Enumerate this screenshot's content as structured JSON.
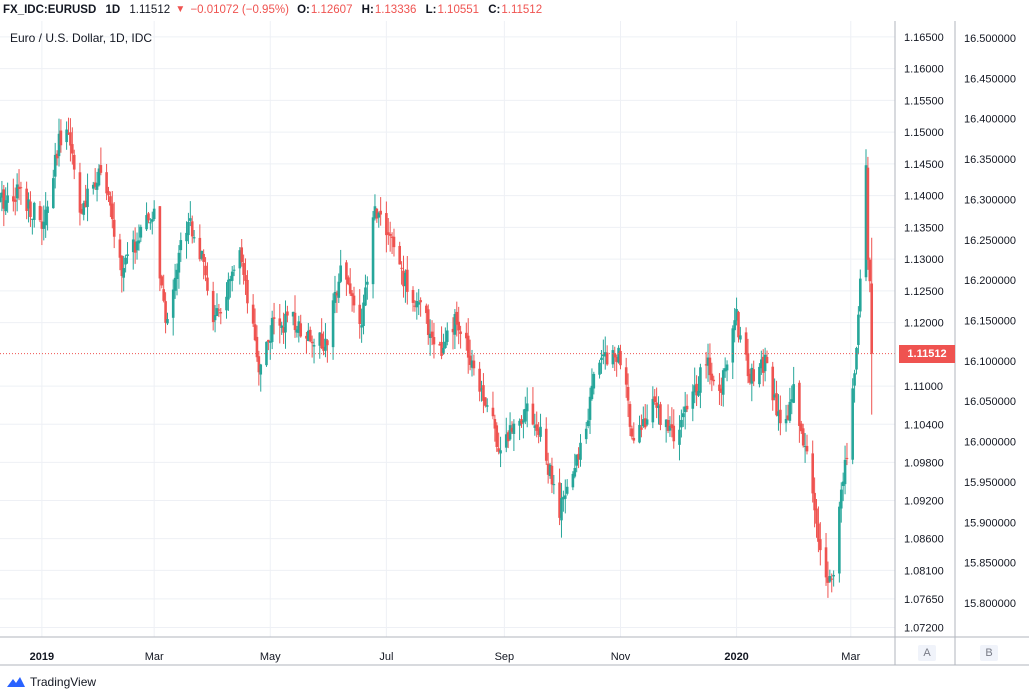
{
  "header": {
    "symbol": "FX_IDC:EURUSD",
    "interval": "1D",
    "last": "1.11512",
    "change": "−0.01072 (−0.95%)",
    "o_label": "O:",
    "o_value": "1.12607",
    "h_label": "H:",
    "h_value": "1.13336",
    "l_label": "L:",
    "l_value": "1.10551",
    "c_label": "C:",
    "c_value": "1.11512"
  },
  "pane": {
    "title": "Euro / U.S. Dollar, 1D, IDC"
  },
  "price_tag": "1.11512",
  "scale_buttons": {
    "a": "A",
    "b": "B"
  },
  "footer": {
    "brand": "TradingView"
  },
  "colors": {
    "up": "#26a69a",
    "down": "#ef5350",
    "grid": "#eef0f5",
    "axis": "#787b86"
  },
  "chart_data": {
    "type": "candlestick",
    "title": "Euro / U.S. Dollar, 1D, IDC",
    "last_price": 1.11512,
    "axis_a": {
      "ticks": [
        "1.16500",
        "1.16000",
        "1.15500",
        "1.15000",
        "1.14500",
        "1.14000",
        "1.13500",
        "1.13000",
        "1.12500",
        "1.12000",
        "1.11000",
        "1.10400",
        "1.09800",
        "1.09200",
        "1.08600",
        "1.08100",
        "1.07650",
        "1.07200"
      ],
      "ylim": [
        1.0705,
        1.1675
      ]
    },
    "axis_b": {
      "ticks": [
        "16.500000",
        "16.450000",
        "16.400000",
        "16.350000",
        "16.300000",
        "16.250000",
        "16.200000",
        "16.150000",
        "16.100000",
        "16.050000",
        "16.000000",
        "15.950000",
        "15.900000",
        "15.850000",
        "15.800000"
      ]
    },
    "x_ticks": [
      {
        "label": "2019",
        "date": "2019-01-01"
      },
      {
        "label": "Mar",
        "date": "2019-03-01"
      },
      {
        "label": "May",
        "date": "2019-05-01"
      },
      {
        "label": "Jul",
        "date": "2019-07-01"
      },
      {
        "label": "Sep",
        "date": "2019-09-01"
      },
      {
        "label": "Nov",
        "date": "2019-11-01"
      },
      {
        "label": "2020",
        "date": "2020-01-01"
      },
      {
        "label": "Mar",
        "date": "2020-03-01"
      }
    ],
    "x_range": [
      "2018-12-10",
      "2020-03-09"
    ],
    "close_path": [
      [
        "2018-12-10",
        1.139
      ],
      [
        "2018-12-20",
        1.141
      ],
      [
        "2019-01-02",
        1.135
      ],
      [
        "2019-01-10",
        1.148
      ],
      [
        "2019-01-14",
        1.152
      ],
      [
        "2019-01-22",
        1.137
      ],
      [
        "2019-02-01",
        1.145
      ],
      [
        "2019-02-12",
        1.128
      ],
      [
        "2019-02-20",
        1.133
      ],
      [
        "2019-03-01",
        1.137
      ],
      [
        "2019-03-07",
        1.119
      ],
      [
        "2019-03-12",
        1.128
      ],
      [
        "2019-03-19",
        1.137
      ],
      [
        "2019-03-25",
        1.131
      ],
      [
        "2019-04-02",
        1.12
      ],
      [
        "2019-04-15",
        1.13
      ],
      [
        "2019-04-25",
        1.113
      ],
      [
        "2019-05-03",
        1.12
      ],
      [
        "2019-05-13",
        1.12
      ],
      [
        "2019-05-23",
        1.118
      ],
      [
        "2019-05-31",
        1.116
      ],
      [
        "2019-06-07",
        1.13
      ],
      [
        "2019-06-18",
        1.119
      ],
      [
        "2019-06-25",
        1.138
      ],
      [
        "2019-07-01",
        1.135
      ],
      [
        "2019-07-10",
        1.127
      ],
      [
        "2019-07-19",
        1.122
      ],
      [
        "2019-07-30",
        1.115
      ],
      [
        "2019-08-06",
        1.12
      ],
      [
        "2019-08-14",
        1.115
      ],
      [
        "2019-08-22",
        1.108
      ],
      [
        "2019-08-30",
        1.1
      ],
      [
        "2019-09-06",
        1.104
      ],
      [
        "2019-09-13",
        1.107
      ],
      [
        "2019-09-20",
        1.102
      ],
      [
        "2019-09-30",
        1.09
      ],
      [
        "2019-10-10",
        1.099
      ],
      [
        "2019-10-21",
        1.115
      ],
      [
        "2019-10-31",
        1.115
      ],
      [
        "2019-11-08",
        1.102
      ],
      [
        "2019-11-19",
        1.107
      ],
      [
        "2019-11-29",
        1.102
      ],
      [
        "2019-12-06",
        1.106
      ],
      [
        "2019-12-16",
        1.114
      ],
      [
        "2019-12-23",
        1.108
      ],
      [
        "2019-12-31",
        1.122
      ],
      [
        "2020-01-08",
        1.111
      ],
      [
        "2020-01-16",
        1.114
      ],
      [
        "2020-01-24",
        1.103
      ],
      [
        "2020-01-31",
        1.109
      ],
      [
        "2020-02-07",
        1.099
      ],
      [
        "2020-02-14",
        1.084
      ],
      [
        "2020-02-20",
        1.079
      ],
      [
        "2020-02-28",
        1.1
      ],
      [
        "2020-03-04",
        1.116
      ],
      [
        "2020-03-09",
        1.145
      ],
      [
        "2020-03-10",
        1.129
      ],
      [
        "2020-03-11",
        1.127
      ],
      [
        "2020-03-12",
        1.1151
      ]
    ]
  }
}
